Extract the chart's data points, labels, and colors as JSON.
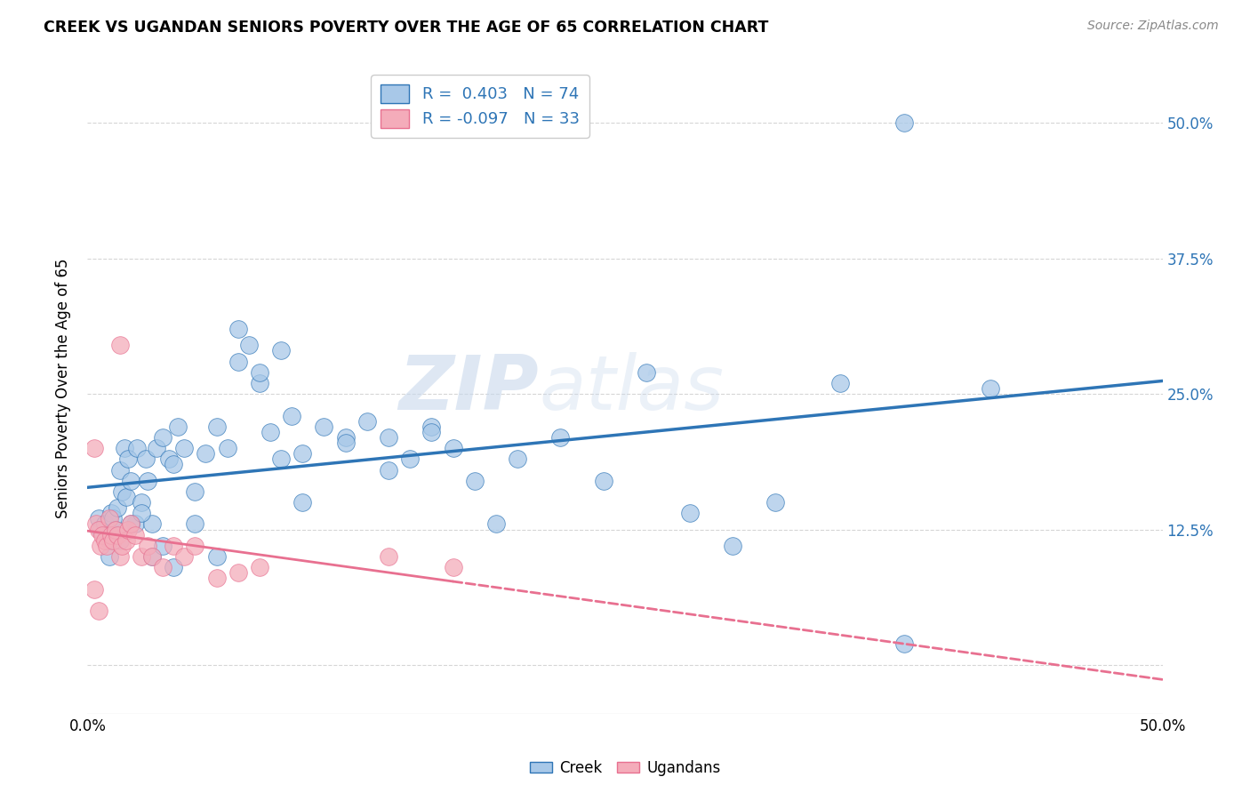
{
  "title": "CREEK VS UGANDAN SENIORS POVERTY OVER THE AGE OF 65 CORRELATION CHART",
  "source": "Source: ZipAtlas.com",
  "ylabel": "Seniors Poverty Over the Age of 65",
  "xlim": [
    0.0,
    0.5
  ],
  "ylim": [
    -0.045,
    0.555
  ],
  "legend_labels": [
    "Creek",
    "Ugandans"
  ],
  "creek_color": "#A8C8E8",
  "ugandan_color": "#F4ACBA",
  "creek_line_color": "#2E75B6",
  "ugandan_line_color": "#E87090",
  "R_creek": 0.403,
  "N_creek": 74,
  "R_ugandan": -0.097,
  "N_ugandan": 33,
  "creek_x": [
    0.005,
    0.006,
    0.008,
    0.009,
    0.01,
    0.011,
    0.012,
    0.013,
    0.014,
    0.015,
    0.016,
    0.017,
    0.018,
    0.019,
    0.02,
    0.022,
    0.023,
    0.025,
    0.027,
    0.028,
    0.03,
    0.032,
    0.035,
    0.038,
    0.04,
    0.042,
    0.045,
    0.05,
    0.055,
    0.06,
    0.065,
    0.07,
    0.075,
    0.08,
    0.085,
    0.09,
    0.095,
    0.1,
    0.11,
    0.12,
    0.13,
    0.14,
    0.15,
    0.16,
    0.17,
    0.18,
    0.19,
    0.2,
    0.22,
    0.24,
    0.26,
    0.28,
    0.3,
    0.32,
    0.35,
    0.38,
    0.01,
    0.015,
    0.02,
    0.025,
    0.03,
    0.035,
    0.04,
    0.05,
    0.06,
    0.07,
    0.08,
    0.09,
    0.1,
    0.12,
    0.14,
    0.16,
    0.42,
    0.38
  ],
  "creek_y": [
    0.135,
    0.125,
    0.13,
    0.12,
    0.115,
    0.14,
    0.135,
    0.125,
    0.145,
    0.18,
    0.16,
    0.2,
    0.155,
    0.19,
    0.17,
    0.13,
    0.2,
    0.15,
    0.19,
    0.17,
    0.13,
    0.2,
    0.21,
    0.19,
    0.185,
    0.22,
    0.2,
    0.16,
    0.195,
    0.22,
    0.2,
    0.28,
    0.295,
    0.26,
    0.215,
    0.19,
    0.23,
    0.195,
    0.22,
    0.21,
    0.225,
    0.18,
    0.19,
    0.22,
    0.2,
    0.17,
    0.13,
    0.19,
    0.21,
    0.17,
    0.27,
    0.14,
    0.11,
    0.15,
    0.26,
    0.5,
    0.1,
    0.115,
    0.13,
    0.14,
    0.1,
    0.11,
    0.09,
    0.13,
    0.1,
    0.31,
    0.27,
    0.29,
    0.15,
    0.205,
    0.21,
    0.215,
    0.255,
    0.02
  ],
  "ugandan_x": [
    0.003,
    0.004,
    0.005,
    0.006,
    0.007,
    0.008,
    0.009,
    0.01,
    0.011,
    0.012,
    0.013,
    0.014,
    0.015,
    0.016,
    0.018,
    0.019,
    0.02,
    0.022,
    0.025,
    0.028,
    0.03,
    0.035,
    0.04,
    0.045,
    0.05,
    0.06,
    0.07,
    0.08,
    0.14,
    0.17,
    0.003,
    0.005,
    0.015
  ],
  "ugandan_y": [
    0.2,
    0.13,
    0.125,
    0.11,
    0.12,
    0.115,
    0.11,
    0.135,
    0.12,
    0.115,
    0.125,
    0.12,
    0.1,
    0.11,
    0.115,
    0.125,
    0.13,
    0.12,
    0.1,
    0.11,
    0.1,
    0.09,
    0.11,
    0.1,
    0.11,
    0.08,
    0.085,
    0.09,
    0.1,
    0.09,
    0.07,
    0.05,
    0.295
  ],
  "watermark_zip": "ZIP",
  "watermark_atlas": "atlas",
  "background_color": "#FFFFFF",
  "grid_color": "#CCCCCC"
}
